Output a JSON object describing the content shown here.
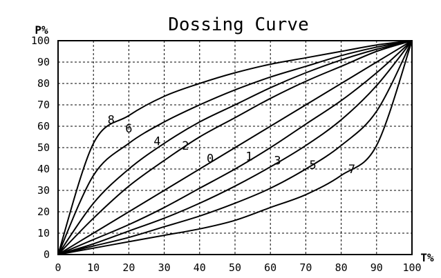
{
  "chart_data": {
    "type": "line",
    "title": "Dossing Curve",
    "xlabel": "T%",
    "ylabel": "P%",
    "xlim": [
      0,
      100
    ],
    "ylim": [
      0,
      100
    ],
    "grid": true,
    "grid_style": "dashed",
    "x_ticks": [
      "0",
      "10",
      "20",
      "30",
      "40",
      "50",
      "60",
      "70",
      "80",
      "90",
      "100"
    ],
    "y_ticks": [
      "0",
      "10",
      "20",
      "30",
      "40",
      "50",
      "60",
      "70",
      "80",
      "90",
      "100"
    ],
    "x": [
      0,
      10,
      20,
      30,
      40,
      50,
      60,
      70,
      80,
      90,
      100
    ],
    "series": [
      {
        "name": "8",
        "label_at": [
          15,
          63
        ],
        "values": [
          0,
          52,
          65,
          74,
          80,
          85,
          89,
          92,
          95,
          98,
          100
        ]
      },
      {
        "name": "6",
        "label_at": [
          20,
          59
        ],
        "values": [
          0,
          37,
          52,
          62,
          70,
          77,
          83,
          88,
          93,
          97,
          100
        ]
      },
      {
        "name": "4",
        "label_at": [
          28,
          53
        ],
        "values": [
          0,
          24,
          40,
          52,
          62,
          70,
          78,
          85,
          91,
          96,
          100
        ]
      },
      {
        "name": "2",
        "label_at": [
          36,
          51
        ],
        "values": [
          0,
          17,
          32,
          44,
          55,
          64,
          73,
          81,
          88,
          95,
          100
        ]
      },
      {
        "name": "0",
        "label_at": [
          43,
          45
        ],
        "values": [
          0,
          10,
          20,
          30,
          40,
          50,
          60,
          70,
          80,
          90,
          100
        ]
      },
      {
        "name": "1",
        "label_at": [
          54,
          46
        ],
        "values": [
          0,
          7,
          14,
          22,
          31,
          40,
          50,
          61,
          72,
          85,
          100
        ]
      },
      {
        "name": "3",
        "label_at": [
          62,
          44
        ],
        "values": [
          0,
          5,
          11,
          17,
          24,
          32,
          41,
          51,
          63,
          79,
          100
        ]
      },
      {
        "name": "5",
        "label_at": [
          72,
          42
        ],
        "values": [
          0,
          4,
          8,
          13,
          18,
          24,
          31,
          40,
          51,
          67,
          100
        ]
      },
      {
        "name": "7",
        "label_at": [
          83,
          40
        ],
        "values": [
          0,
          3,
          6,
          9,
          12,
          16,
          22,
          28,
          37,
          51,
          100
        ]
      }
    ]
  },
  "colors": {
    "line": "#000000",
    "background": "#ffffff",
    "grid": "#000000"
  }
}
